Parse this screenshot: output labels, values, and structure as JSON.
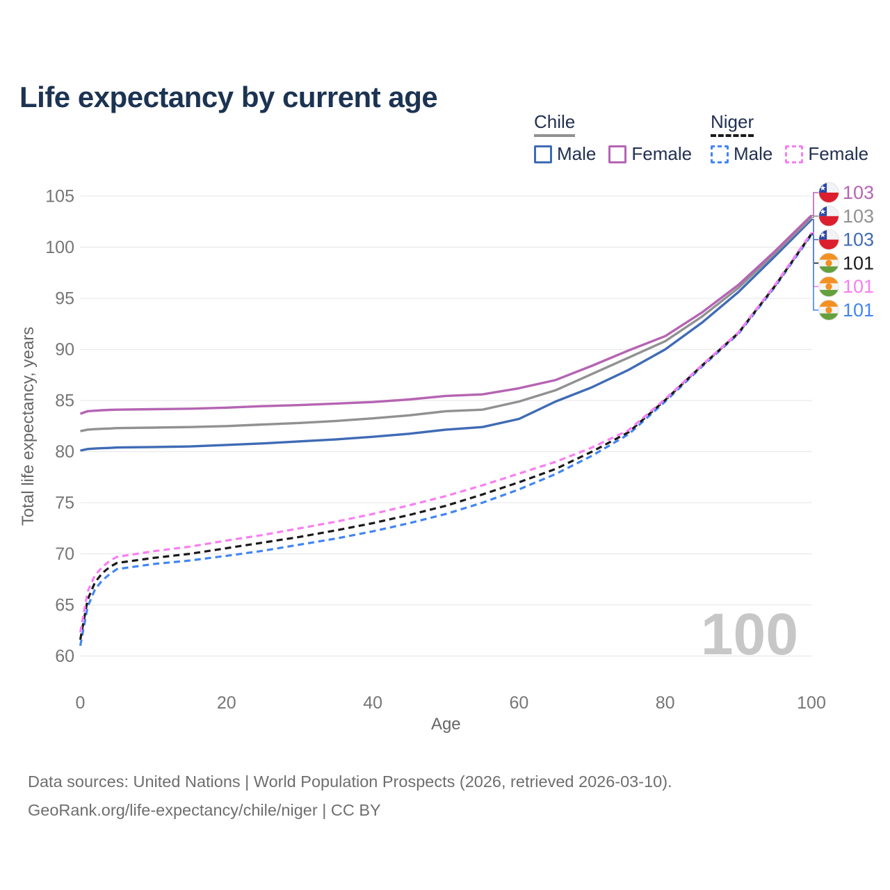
{
  "title": "Life expectancy by current age",
  "watermark": "100",
  "legend": {
    "groups": [
      {
        "label": "Chile",
        "line": "solid",
        "underline_color": "#919191",
        "items": [
          {
            "label": "Male",
            "color": "#3f6bb5"
          },
          {
            "label": "Female",
            "color": "#b564b3"
          }
        ]
      },
      {
        "label": "Niger",
        "line": "dashed",
        "underline_color": "#1a1a1a",
        "items": [
          {
            "label": "Male",
            "color": "#4285f1"
          },
          {
            "label": "Female",
            "color": "#f87ef2"
          }
        ]
      }
    ]
  },
  "footer": {
    "line1": "Data sources: United Nations | World Population Prospects (2026, retrieved 2026-03-10).",
    "line2": "GeoRank.org/life-expectancy/chile/niger | CC BY"
  },
  "chart_data": {
    "type": "line",
    "title": "Life expectancy by current age",
    "xlabel": "Age",
    "ylabel": "Total life expectancy, years",
    "xlim": [
      0,
      100
    ],
    "ylim": [
      60,
      105
    ],
    "xticks": [
      0,
      20,
      40,
      60,
      80,
      100
    ],
    "yticks": [
      60,
      65,
      70,
      75,
      80,
      85,
      90,
      95,
      100,
      105
    ],
    "grid": "horizontal",
    "legend_position": "top-right",
    "x": [
      0,
      1,
      2,
      3,
      4,
      5,
      10,
      15,
      20,
      25,
      30,
      35,
      40,
      45,
      50,
      55,
      60,
      65,
      70,
      75,
      80,
      85,
      90,
      95,
      100
    ],
    "series": [
      {
        "name": "Chile Male",
        "country": "Chile",
        "sex": "Male",
        "color": "#3f6bb5",
        "dash": false,
        "flag": "chile",
        "end_label": "103",
        "label_slot": 2,
        "values": [
          80.1,
          80.25,
          80.3,
          80.33,
          80.36,
          80.4,
          80.45,
          80.5,
          80.65,
          80.8,
          81.0,
          81.2,
          81.45,
          81.75,
          82.15,
          82.4,
          83.2,
          84.9,
          86.3,
          88.0,
          90.0,
          92.6,
          95.6,
          99.1,
          102.7
        ]
      },
      {
        "name": "Chile Both sexes",
        "country": "Chile",
        "sex": "Both",
        "color": "#919191",
        "dash": false,
        "flag": "chile",
        "end_label": "103",
        "label_slot": 1,
        "values": [
          82.0,
          82.15,
          82.2,
          82.23,
          82.26,
          82.3,
          82.35,
          82.4,
          82.5,
          82.65,
          82.8,
          83.0,
          83.25,
          83.55,
          83.95,
          84.1,
          84.9,
          86.0,
          87.6,
          89.2,
          90.8,
          93.2,
          96.0,
          99.4,
          102.9
        ]
      },
      {
        "name": "Chile Female",
        "country": "Chile",
        "sex": "Female",
        "color": "#b564b3",
        "dash": false,
        "flag": "chile",
        "end_label": "103",
        "label_slot": 0,
        "values": [
          83.7,
          83.95,
          84.0,
          84.05,
          84.08,
          84.1,
          84.15,
          84.2,
          84.3,
          84.45,
          84.55,
          84.7,
          84.85,
          85.1,
          85.45,
          85.6,
          86.2,
          87.0,
          88.4,
          89.9,
          91.3,
          93.6,
          96.3,
          99.6,
          103.1
        ]
      },
      {
        "name": "Niger Male",
        "country": "Niger",
        "sex": "Male",
        "color": "#4285f1",
        "dash": true,
        "flag": "niger",
        "end_label": "101",
        "label_slot": 5,
        "values": [
          61.0,
          64.8,
          66.5,
          67.4,
          68.0,
          68.5,
          69.0,
          69.35,
          69.8,
          70.3,
          70.9,
          71.5,
          72.2,
          73.0,
          73.9,
          75.0,
          76.3,
          77.8,
          79.6,
          81.7,
          84.9,
          88.3,
          91.5,
          96.1,
          101.2
        ]
      },
      {
        "name": "Niger Both sexes",
        "country": "Niger",
        "sex": "Both",
        "color": "#1a1a1a",
        "dash": true,
        "flag": "niger",
        "end_label": "101",
        "label_slot": 3,
        "values": [
          61.6,
          65.5,
          67.2,
          68.1,
          68.7,
          69.1,
          69.6,
          70.0,
          70.55,
          71.1,
          71.65,
          72.3,
          73.0,
          73.8,
          74.7,
          75.8,
          77.0,
          78.3,
          80.0,
          81.9,
          85.05,
          88.4,
          91.6,
          96.2,
          101.3
        ]
      },
      {
        "name": "Niger Female",
        "country": "Niger",
        "sex": "Female",
        "color": "#f87ef2",
        "dash": true,
        "flag": "niger",
        "end_label": "101",
        "label_slot": 4,
        "values": [
          62.3,
          66.3,
          67.9,
          68.7,
          69.3,
          69.7,
          70.25,
          70.7,
          71.3,
          71.85,
          72.5,
          73.15,
          73.9,
          74.75,
          75.65,
          76.7,
          77.85,
          79.0,
          80.4,
          82.1,
          85.15,
          88.45,
          91.65,
          96.3,
          101.4
        ]
      }
    ]
  }
}
